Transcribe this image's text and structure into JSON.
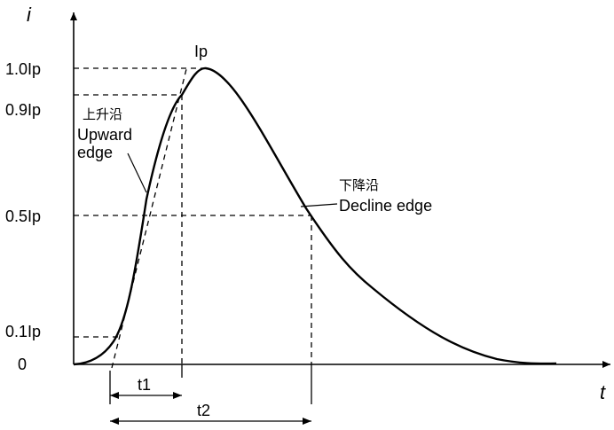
{
  "axes": {
    "y_name": "i",
    "x_name": "t",
    "y_ticks": [
      "0",
      "0.1Ip",
      "0.5Ip",
      "0.9Ip",
      "1.0Ip"
    ]
  },
  "annotations": {
    "peak": "Ip",
    "upward_cn": "上升沿",
    "upward_en_1": "Upward",
    "upward_en_2": "edge",
    "decline_cn": "下降沿",
    "decline_en": "Decline edge",
    "t1": "t1",
    "t2": "t2"
  },
  "colors": {
    "line": "#000000",
    "background": "#ffffff"
  }
}
